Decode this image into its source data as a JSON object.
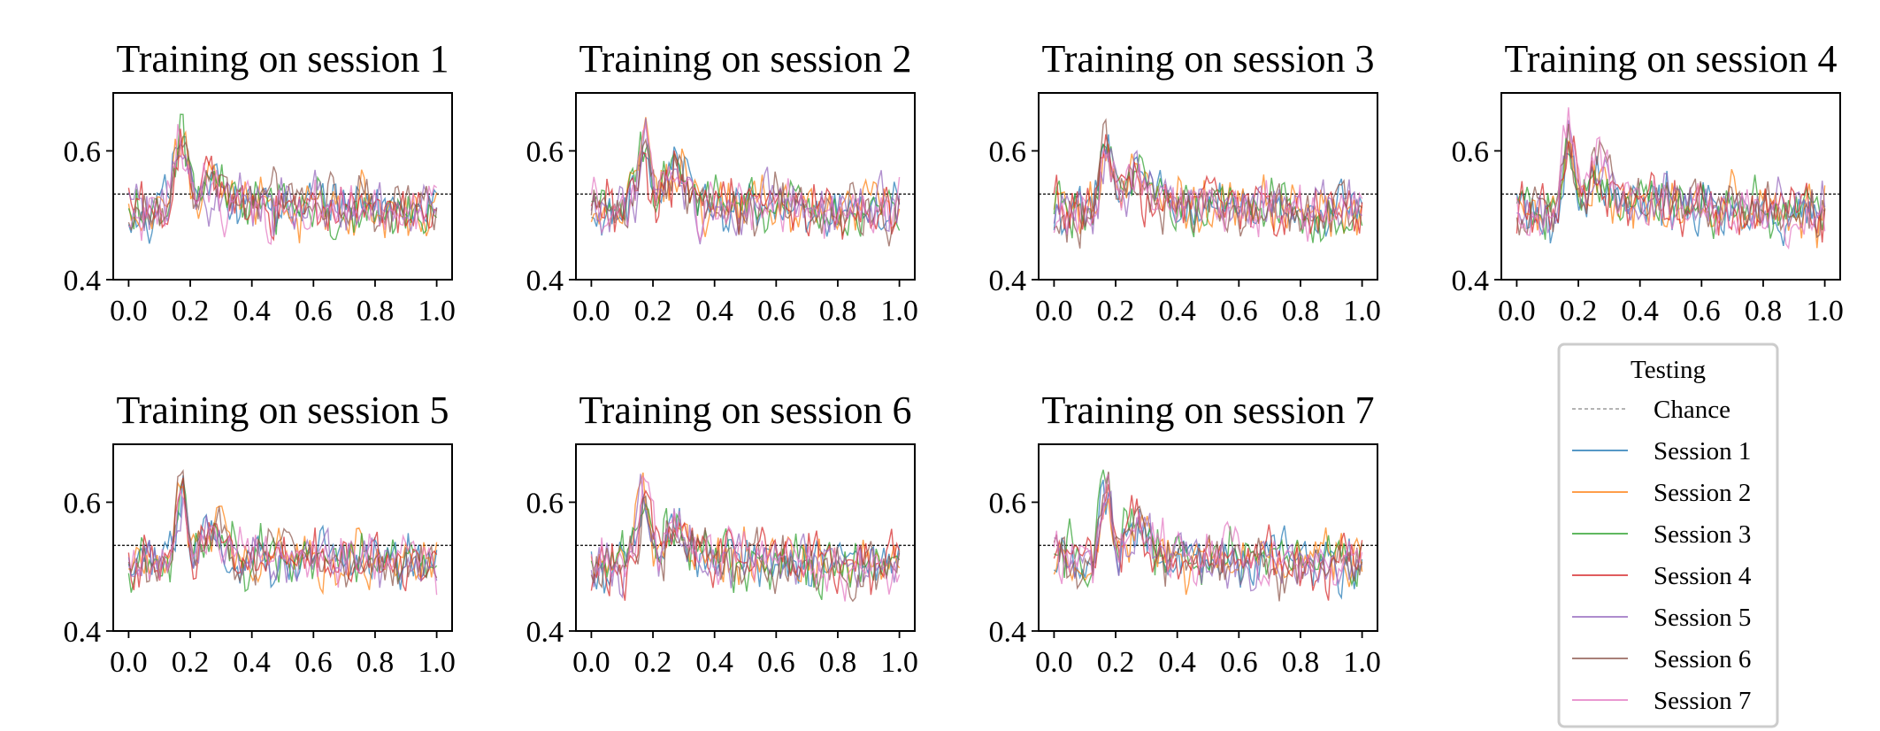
{
  "chart_data": {
    "type": "line",
    "panels": [
      {
        "title": "Training on session 1",
        "seed": 11
      },
      {
        "title": "Training on session 2",
        "seed": 23
      },
      {
        "title": "Training on session 3",
        "seed": 37
      },
      {
        "title": "Training on session 4",
        "seed": 41
      },
      {
        "title": "Training on session 5",
        "seed": 53
      },
      {
        "title": "Training on session 6",
        "seed": 67
      },
      {
        "title": "Training on session 7",
        "seed": 79
      }
    ],
    "shared_axes": {
      "xlim": [
        -0.05,
        1.05
      ],
      "ylim": [
        0.4,
        0.69
      ],
      "xticks": [
        0.0,
        0.2,
        0.4,
        0.6,
        0.8,
        1.0
      ],
      "xtick_labels": [
        "0.0",
        "0.2",
        "0.4",
        "0.6",
        "0.8",
        "1.0"
      ],
      "yticks": [
        0.4,
        0.6
      ],
      "ytick_labels": [
        "0.4",
        "0.6"
      ],
      "grid": false
    },
    "chance_level": 0.533,
    "n_points": 120,
    "series_shape": {
      "baseline": 0.505,
      "early_peak_x": 0.17,
      "early_peak_y": 0.61,
      "dip_x": 0.21,
      "dip_y": 0.5,
      "secondary_peak_x": 0.27,
      "secondary_peak_y": 0.56,
      "noise_amplitude": 0.028
    },
    "legend": {
      "title": "Testing",
      "placement": "lower-right",
      "entries": [
        "Chance",
        "Session 1",
        "Session 2",
        "Session 3",
        "Session 4",
        "Session 5",
        "Session 6",
        "Session 7"
      ]
    },
    "series": [
      {
        "name": "Session 1",
        "color": "#1f77b4"
      },
      {
        "name": "Session 2",
        "color": "#ff7f0e"
      },
      {
        "name": "Session 3",
        "color": "#2ca02c"
      },
      {
        "name": "Session 4",
        "color": "#d62728"
      },
      {
        "name": "Session 5",
        "color": "#9467bd"
      },
      {
        "name": "Session 6",
        "color": "#8c564b"
      },
      {
        "name": "Session 7",
        "color": "#e377c2"
      }
    ],
    "chance_color": "#888888"
  }
}
